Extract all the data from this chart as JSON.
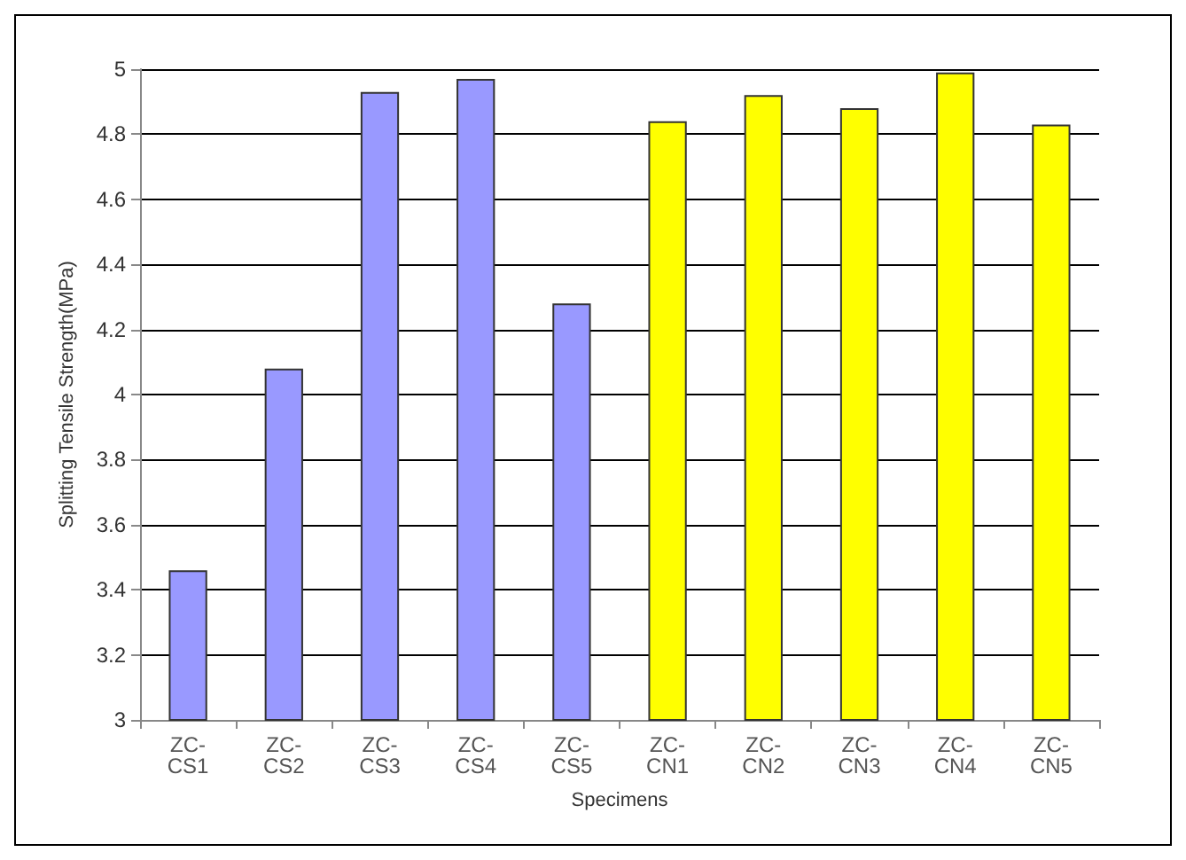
{
  "chart_data": {
    "type": "bar",
    "xlabel": "Specimens",
    "ylabel": "Splitting Tensile Strength(MPa)",
    "categories": [
      "ZC-CS1",
      "ZC-CS2",
      "ZC-CS3",
      "ZC-CS4",
      "ZC-CS5",
      "ZC-CN1",
      "ZC-CN2",
      "ZC-CN3",
      "ZC-CN4",
      "ZC-CN5"
    ],
    "values": [
      3.46,
      4.08,
      4.93,
      4.97,
      4.28,
      4.84,
      4.92,
      4.88,
      4.99,
      4.83
    ],
    "colors": [
      "#9999ff",
      "#9999ff",
      "#9999ff",
      "#9999ff",
      "#9999ff",
      "#ffff00",
      "#ffff00",
      "#ffff00",
      "#ffff00",
      "#ffff00"
    ],
    "ylim": [
      3,
      5
    ],
    "yticks": [
      3,
      3.2,
      3.4,
      3.6,
      3.8,
      4,
      4.2,
      4.4,
      4.6,
      4.8,
      5
    ],
    "grid": "y"
  }
}
